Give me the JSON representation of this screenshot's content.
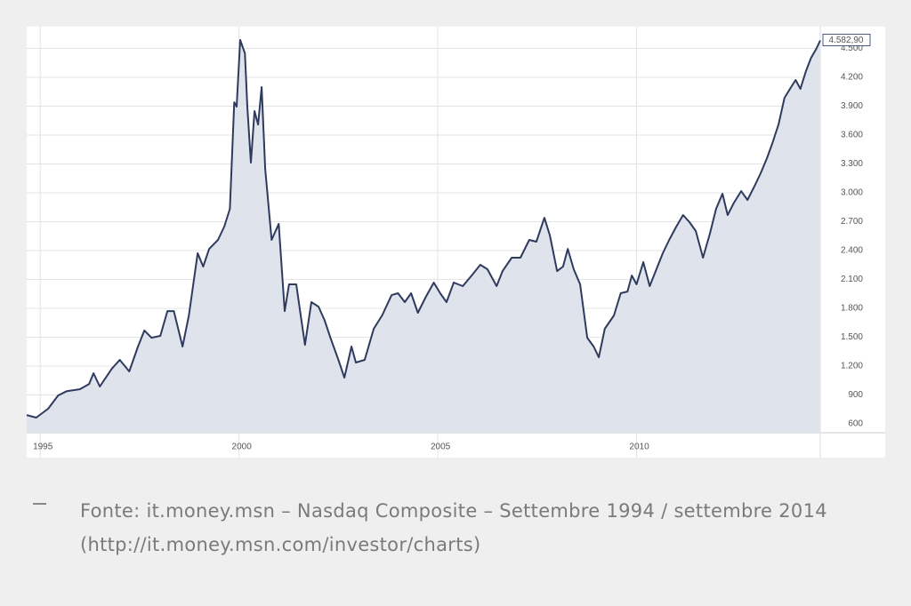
{
  "chart_data": {
    "type": "area",
    "x": [
      1994.66,
      1994.9,
      1995.2,
      1995.45,
      1995.67,
      1996.0,
      1996.23,
      1996.34,
      1996.5,
      1996.8,
      1997.0,
      1997.24,
      1997.46,
      1997.62,
      1997.8,
      1998.02,
      1998.2,
      1998.36,
      1998.58,
      1998.74,
      1998.96,
      1999.1,
      1999.25,
      1999.47,
      1999.63,
      1999.77,
      1999.88,
      1999.94,
      2000.03,
      2000.15,
      2000.21,
      2000.3,
      2000.39,
      2000.48,
      2000.57,
      2000.66,
      2000.82,
      2001.0,
      2001.15,
      2001.26,
      2001.44,
      2001.66,
      2001.82,
      2002.0,
      2002.15,
      2002.3,
      2002.5,
      2002.65,
      2002.83,
      2002.94,
      2003.16,
      2003.39,
      2003.6,
      2003.84,
      2004.0,
      2004.17,
      2004.33,
      2004.5,
      2004.69,
      2004.9,
      2005.06,
      2005.22,
      2005.4,
      2005.63,
      2005.85,
      2006.07,
      2006.25,
      2006.48,
      2006.63,
      2006.86,
      2007.08,
      2007.3,
      2007.48,
      2007.68,
      2007.82,
      2008.0,
      2008.15,
      2008.27,
      2008.42,
      2008.58,
      2008.76,
      2008.92,
      2009.05,
      2009.2,
      2009.43,
      2009.6,
      2009.77,
      2009.88,
      2010.0,
      2010.17,
      2010.33,
      2010.48,
      2010.66,
      2010.82,
      2011.0,
      2011.17,
      2011.33,
      2011.49,
      2011.67,
      2011.85,
      2012.0,
      2012.16,
      2012.29,
      2012.45,
      2012.63,
      2012.79,
      2012.96,
      2013.12,
      2013.28,
      2013.41,
      2013.57,
      2013.72,
      2013.86,
      2014.0,
      2014.12,
      2014.26,
      2014.39,
      2014.52,
      2014.62
    ],
    "series": [
      {
        "name": "Nasdaq Composite",
        "color": "#2f3b5e",
        "fill": "#dfe3ec",
        "values": [
          692,
          665,
          757,
          895,
          940,
          960,
          1015,
          1126,
          988,
          1172,
          1265,
          1145,
          1403,
          1570,
          1495,
          1514,
          1772,
          1772,
          1403,
          1726,
          2372,
          2234,
          2418,
          2511,
          2649,
          2834,
          3941,
          3895,
          4588,
          4449,
          3895,
          3314,
          3849,
          3710,
          4098,
          3249,
          2511,
          2677,
          1772,
          2049,
          2049,
          1421,
          1865,
          1818,
          1680,
          1495,
          1265,
          1080,
          1403,
          1237,
          1265,
          1588,
          1726,
          1938,
          1957,
          1865,
          1957,
          1754,
          1911,
          2068,
          1957,
          1865,
          2068,
          2031,
          2141,
          2252,
          2206,
          2031,
          2187,
          2326,
          2326,
          2511,
          2492,
          2741,
          2557,
          2187,
          2234,
          2418,
          2206,
          2049,
          1495,
          1403,
          1292,
          1588,
          1726,
          1957,
          1975,
          2141,
          2049,
          2280,
          2031,
          2187,
          2372,
          2511,
          2649,
          2769,
          2695,
          2603,
          2326,
          2585,
          2834,
          2991,
          2769,
          2898,
          3018,
          2926,
          3064,
          3203,
          3360,
          3508,
          3710,
          3987,
          4080,
          4172,
          4080,
          4264,
          4403,
          4495,
          4583
        ]
      }
    ],
    "xlim": [
      1994.66,
      2014.62
    ],
    "xticks": [
      1995,
      2000,
      2005,
      2010
    ],
    "ylim": [
      508,
      4726
    ],
    "yticks": [
      600,
      900,
      {
        "value": 1200,
        "label": "1.200"
      },
      {
        "value": 1500,
        "label": "1.500"
      },
      {
        "value": 1800,
        "label": "1.800"
      },
      {
        "value": 2100,
        "label": "2.100"
      },
      {
        "value": 2400,
        "label": "2.400"
      },
      {
        "value": 2700,
        "label": "2.700"
      },
      {
        "value": 3000,
        "label": "3.000"
      },
      {
        "value": 3300,
        "label": "3.300"
      },
      {
        "value": 3600,
        "label": "3.600"
      },
      {
        "value": 3900,
        "label": "3.900"
      },
      {
        "value": 4200,
        "label": "4.200"
      },
      {
        "value": 4500,
        "label": "4.500"
      }
    ],
    "current_value": {
      "value": 4582.9,
      "label": "4.582,90"
    },
    "grid": true,
    "caption": "Fonte: it.money.msn – Nasdaq Composite – Settembre 1994 / settembre 2014 (http://it.money.msn.com/investor/charts)"
  }
}
